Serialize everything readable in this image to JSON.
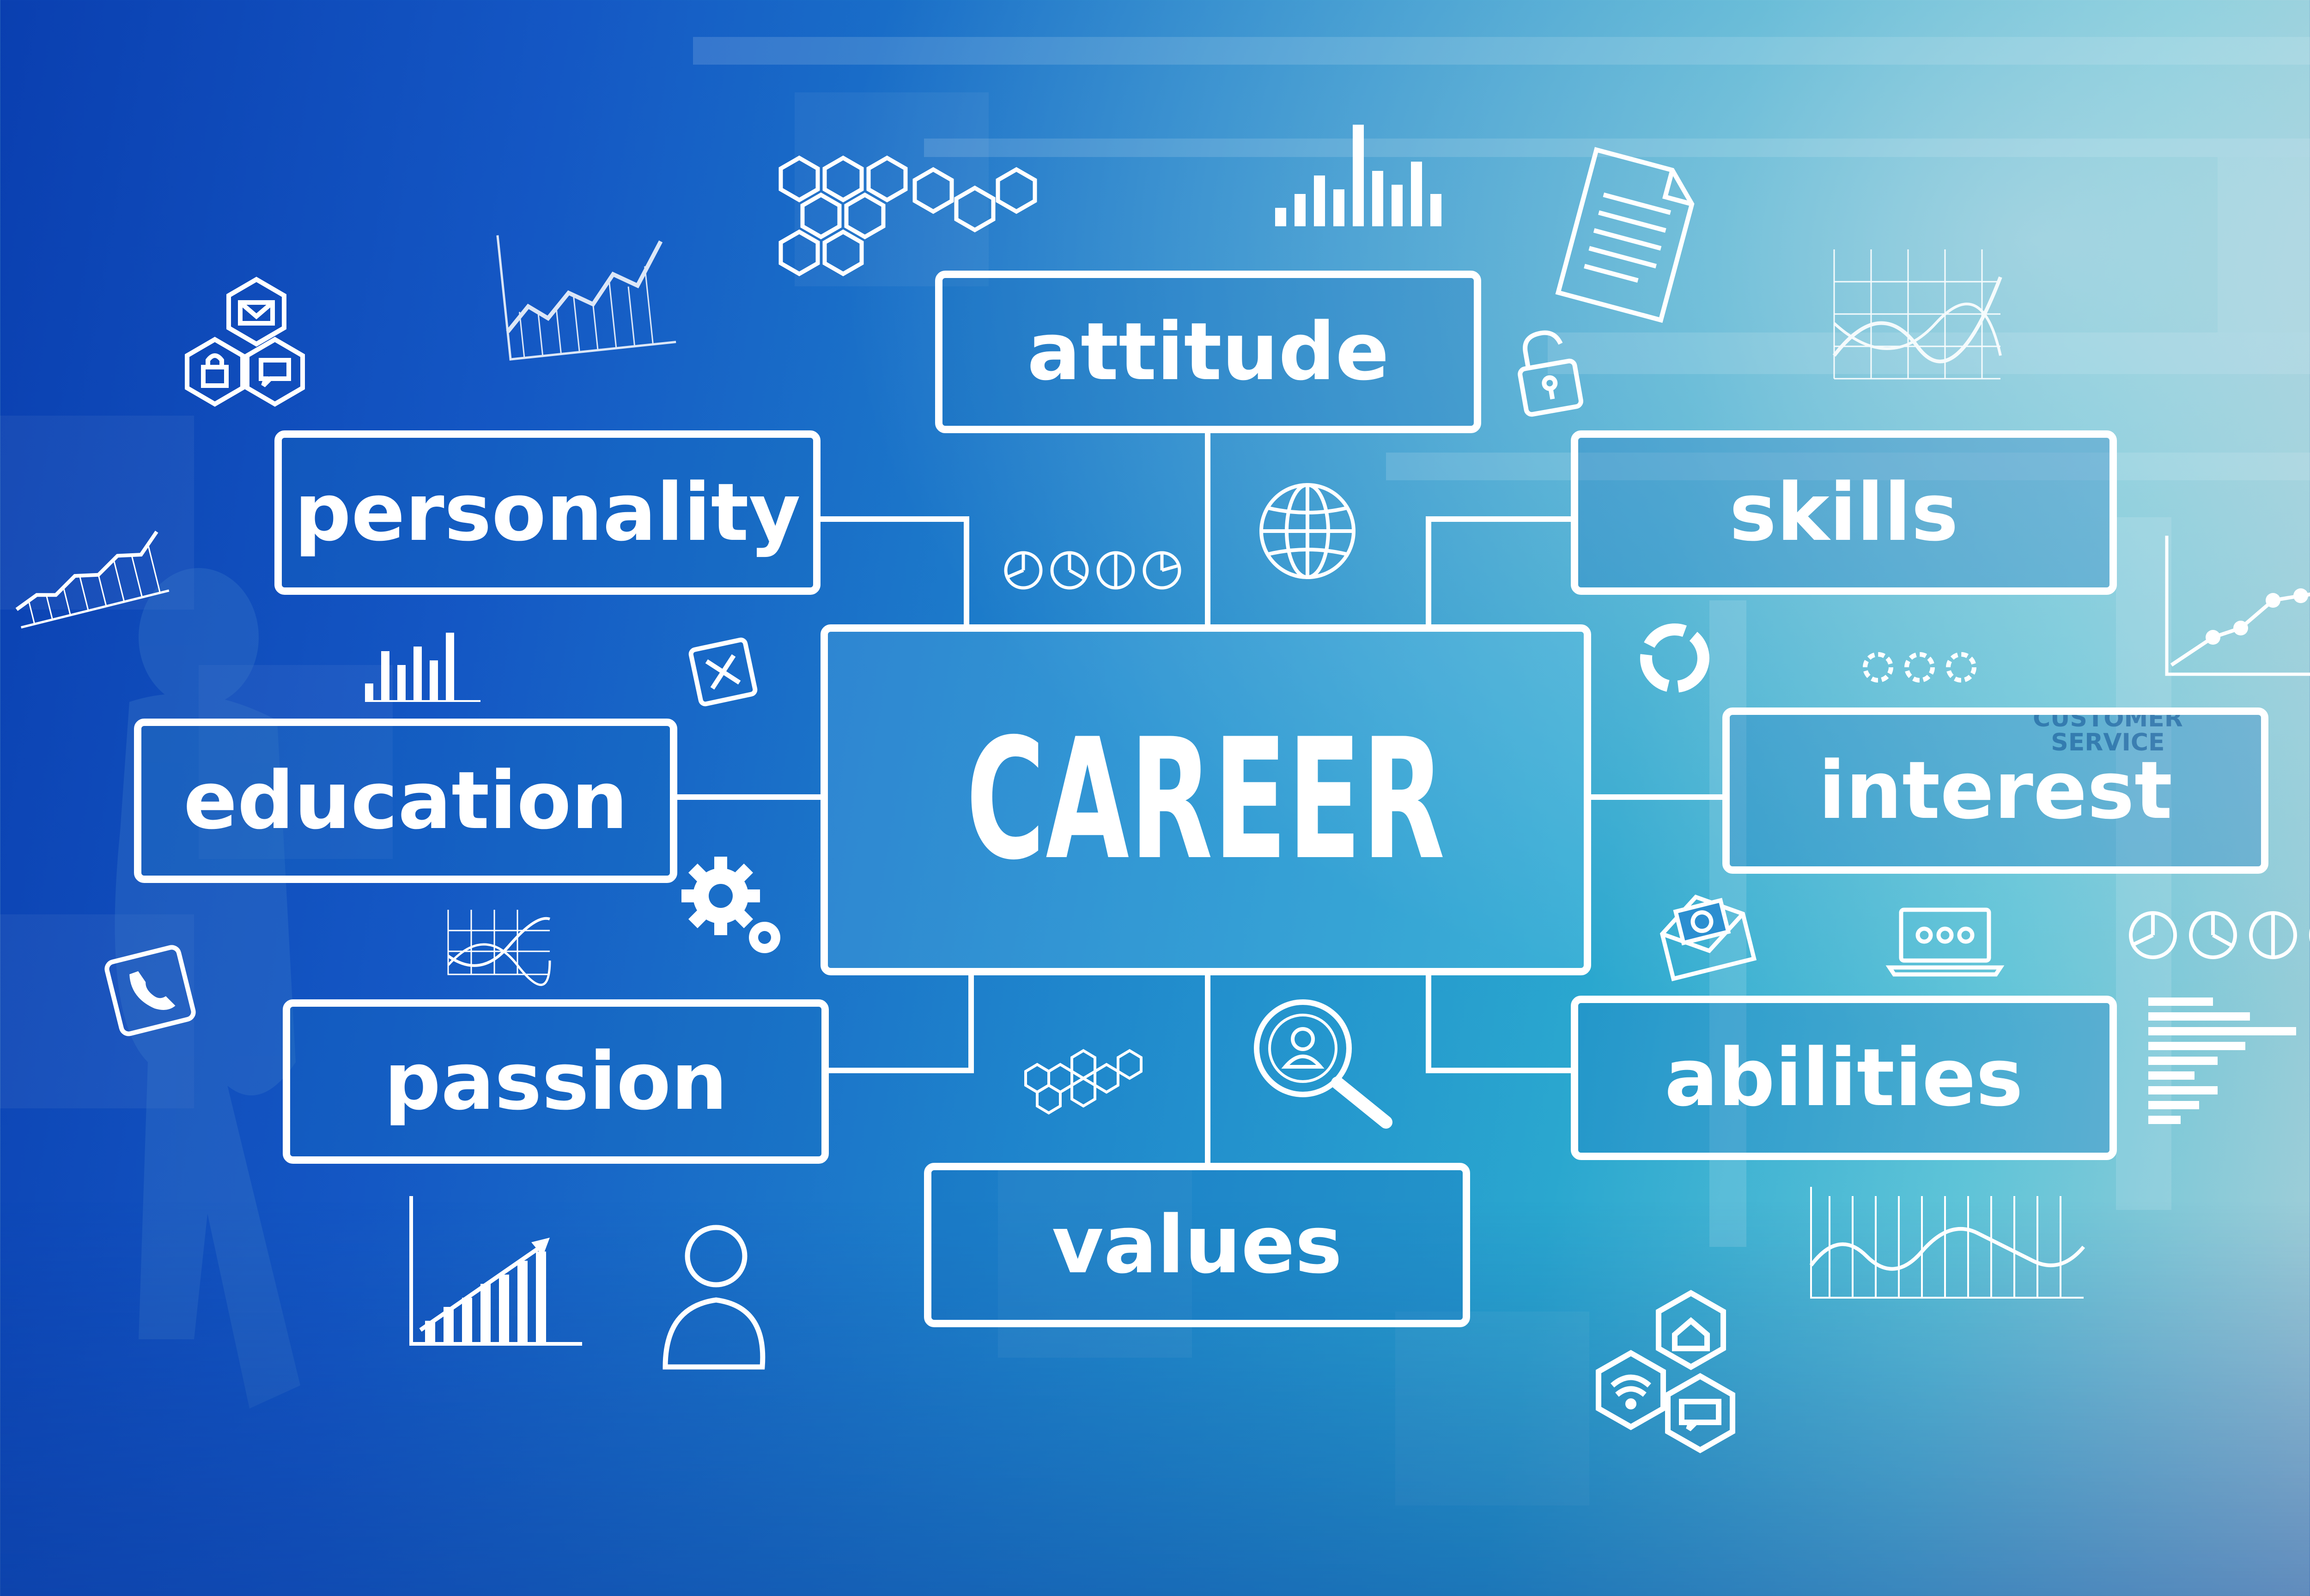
{
  "diagram": {
    "center": {
      "label": "CAREER"
    },
    "nodes": [
      {
        "id": "attitude",
        "label": "attitude"
      },
      {
        "id": "personality",
        "label": "personality"
      },
      {
        "id": "skills",
        "label": "skills"
      },
      {
        "id": "education",
        "label": "education"
      },
      {
        "id": "interest",
        "label": "interest"
      },
      {
        "id": "passion",
        "label": "passion"
      },
      {
        "id": "abilities",
        "label": "abilities"
      },
      {
        "id": "values",
        "label": "values"
      }
    ],
    "edges": [
      [
        "career",
        "attitude"
      ],
      [
        "career",
        "personality"
      ],
      [
        "career",
        "skills"
      ],
      [
        "career",
        "education"
      ],
      [
        "career",
        "interest"
      ],
      [
        "career",
        "passion"
      ],
      [
        "career",
        "abilities"
      ],
      [
        "career",
        "values"
      ]
    ]
  },
  "background_sign": {
    "line1": "CUSTOMER",
    "line2": "SERVICE"
  },
  "icons": [
    "hexagon-cluster-icon",
    "bar-chart-icon",
    "document-icon",
    "line-chart-icon",
    "mail-lock-chat-hexagons-icon",
    "unlock-icon",
    "globe-icon",
    "pie-charts-icon",
    "ring-chart-icon",
    "growth-chart-icon",
    "gears-icon",
    "close-icon",
    "phone-icon",
    "wave-chart-icon",
    "email-envelope-icon",
    "laptop-icon",
    "horizontal-bar-chart-icon",
    "user-search-icon",
    "user-icon",
    "home-wifi-chat-hexagons-icon"
  ],
  "colors": {
    "line": "#ffffff",
    "bg_deep": "#0a3fb0",
    "bg_light": "#5fc4d8"
  }
}
